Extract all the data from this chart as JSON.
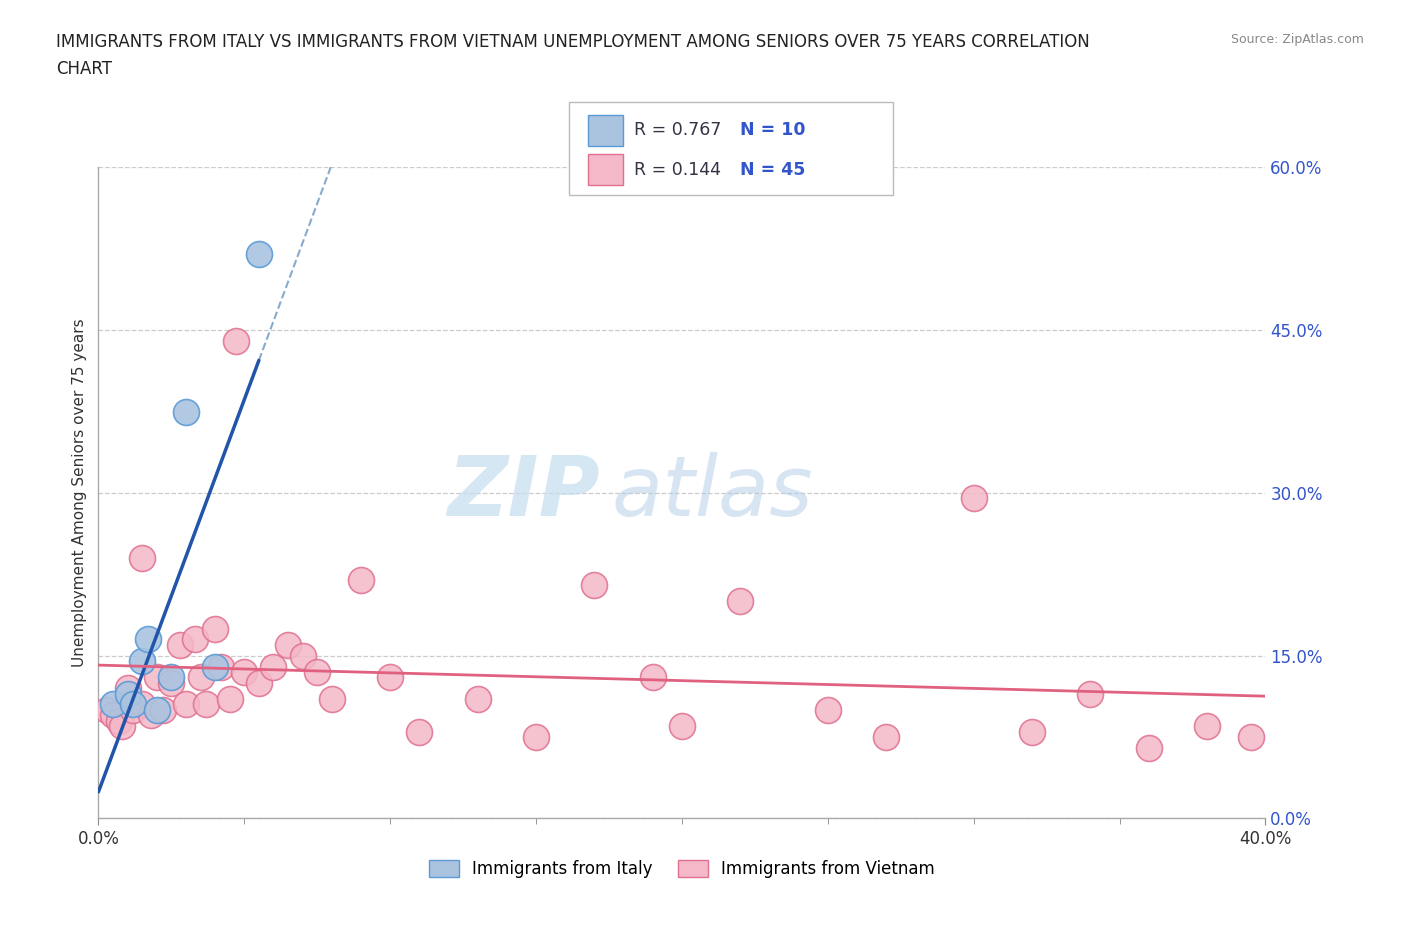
{
  "title_line1": "IMMIGRANTS FROM ITALY VS IMMIGRANTS FROM VIETNAM UNEMPLOYMENT AMONG SENIORS OVER 75 YEARS CORRELATION",
  "title_line2": "CHART",
  "source": "Source: ZipAtlas.com",
  "ylabel": "Unemployment Among Seniors over 75 years",
  "x_tick_labels": [
    "0.0%",
    "40.0%"
  ],
  "x_tick_values": [
    0.0,
    0.4
  ],
  "y_tick_labels_right": [
    "0.0%",
    "15.0%",
    "30.0%",
    "45.0%",
    "60.0%"
  ],
  "y_tick_values": [
    0.0,
    0.15,
    0.3,
    0.45,
    0.6
  ],
  "italy_color": "#aac4e0",
  "italy_edge_color": "#5b9bd5",
  "italy_line_color": "#2255aa",
  "vietnam_color": "#f4b8c8",
  "vietnam_edge_color": "#e07090",
  "vietnam_line_color": "#e06080",
  "ref_line_color": "#88aacc",
  "legend_italy_R": "R = 0.767",
  "legend_italy_N": "N = 10",
  "legend_vietnam_R": "R = 0.144",
  "legend_vietnam_N": "N = 45",
  "legend_R_color": "#333344",
  "legend_N_color": "#3355cc",
  "italy_x": [
    0.005,
    0.01,
    0.012,
    0.015,
    0.017,
    0.02,
    0.025,
    0.03,
    0.04,
    0.055
  ],
  "italy_y": [
    0.105,
    0.115,
    0.105,
    0.145,
    0.165,
    0.1,
    0.13,
    0.375,
    0.14,
    0.52
  ],
  "vietnam_x": [
    0.003,
    0.005,
    0.007,
    0.008,
    0.01,
    0.012,
    0.015,
    0.015,
    0.018,
    0.02,
    0.022,
    0.025,
    0.028,
    0.03,
    0.033,
    0.035,
    0.037,
    0.04,
    0.042,
    0.045,
    0.047,
    0.05,
    0.055,
    0.06,
    0.065,
    0.07,
    0.075,
    0.08,
    0.09,
    0.1,
    0.11,
    0.13,
    0.15,
    0.17,
    0.19,
    0.2,
    0.22,
    0.25,
    0.27,
    0.3,
    0.32,
    0.34,
    0.36,
    0.38,
    0.395
  ],
  "vietnam_y": [
    0.1,
    0.095,
    0.09,
    0.085,
    0.12,
    0.1,
    0.24,
    0.105,
    0.095,
    0.13,
    0.1,
    0.125,
    0.16,
    0.105,
    0.165,
    0.13,
    0.105,
    0.175,
    0.14,
    0.11,
    0.44,
    0.135,
    0.125,
    0.14,
    0.16,
    0.15,
    0.135,
    0.11,
    0.22,
    0.13,
    0.08,
    0.11,
    0.075,
    0.215,
    0.13,
    0.085,
    0.2,
    0.1,
    0.075,
    0.295,
    0.08,
    0.115,
    0.065,
    0.085,
    0.075
  ],
  "watermark_zip": "ZIP",
  "watermark_atlas": "atlas",
  "background_color": "#ffffff",
  "grid_color": "#cccccc",
  "xlim": [
    0.0,
    0.4
  ],
  "ylim": [
    0.0,
    0.6
  ]
}
